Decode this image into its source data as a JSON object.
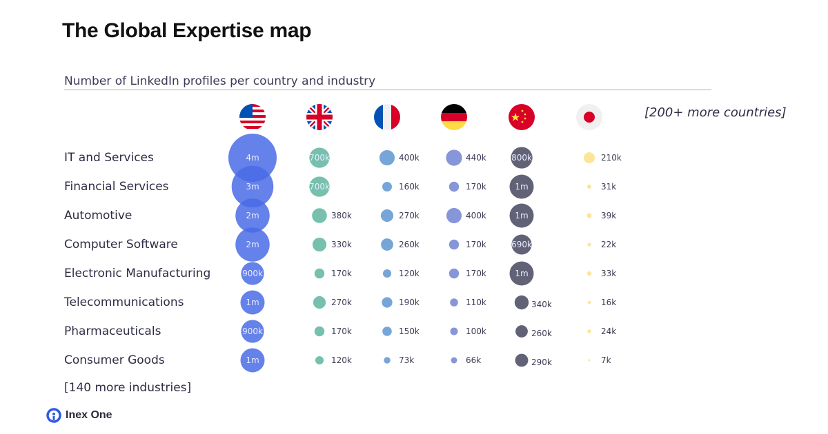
{
  "title": "The Global Expertise map",
  "subtitle": "Number of LinkedIn profiles per country and industry",
  "more_countries": "[200+ more countries]",
  "more_industries": "[140 more industries]",
  "logo": {
    "text": "Inex One",
    "icon": "inex-one-logo-icon",
    "color": "#2f5be3"
  },
  "chart_data": {
    "type": "bubble-table",
    "columns": [
      {
        "country": "United States",
        "flag": "us-flag-icon",
        "color": "#4a6be6"
      },
      {
        "country": "United Kingdom",
        "flag": "uk-flag-icon",
        "color": "#6fbda9"
      },
      {
        "country": "France",
        "flag": "france-flag-icon",
        "color": "#6fa0d6"
      },
      {
        "country": "Germany",
        "flag": "germany-flag-icon",
        "color": "#8090d6"
      },
      {
        "country": "China",
        "flag": "china-flag-icon",
        "color": "#5a5a70"
      },
      {
        "country": "Japan",
        "flag": "japan-flag-icon",
        "color": "#fde394"
      }
    ],
    "rows": [
      {
        "industry": "IT and Services",
        "labels": [
          "4m",
          "700k",
          "400k",
          "440k",
          "800k",
          "210k"
        ]
      },
      {
        "industry": "Financial Services",
        "labels": [
          "3m",
          "700k",
          "160k",
          "170k",
          "1m",
          "31k"
        ]
      },
      {
        "industry": "Automotive",
        "labels": [
          "2m",
          "380k",
          "270k",
          "400k",
          "1m",
          "39k"
        ]
      },
      {
        "industry": "Computer Software",
        "labels": [
          "2m",
          "330k",
          "260k",
          "170k",
          "690k",
          "22k"
        ]
      },
      {
        "industry": "Electronic Manufacturing",
        "labels": [
          "900k",
          "170k",
          "120k",
          "170k",
          "1m",
          "33k"
        ]
      },
      {
        "industry": "Telecommunications",
        "labels": [
          "1m",
          "270k",
          "190k",
          "110k",
          "340k",
          "16k"
        ]
      },
      {
        "industry": "Pharmaceuticals",
        "labels": [
          "900k",
          "170k",
          "150k",
          "100k",
          "260k",
          "24k"
        ]
      },
      {
        "industry": "Consumer Goods",
        "labels": [
          "1m",
          "120k",
          "73k",
          "66k",
          "290k",
          "7k"
        ]
      }
    ]
  }
}
